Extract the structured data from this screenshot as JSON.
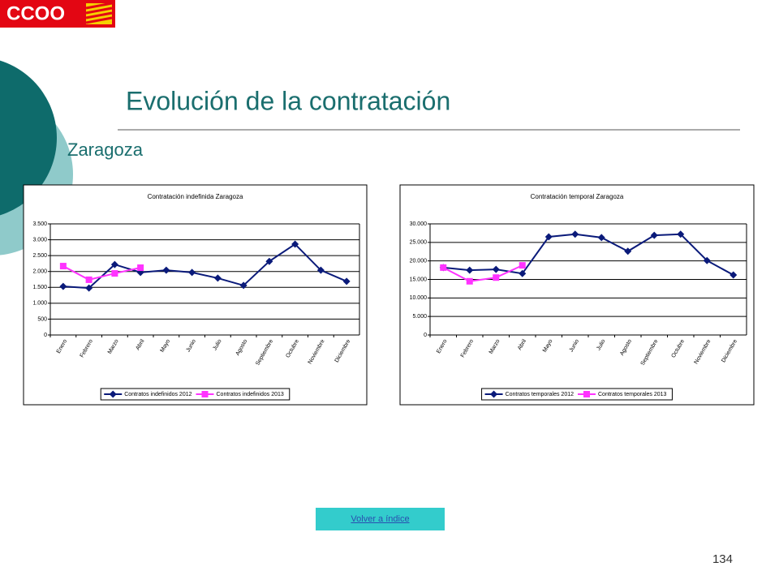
{
  "slide": {
    "logo": "CCOO",
    "title": "Evolución de la contratación",
    "subtitle": "Zaragoza",
    "button": "Volver a índice",
    "page_number": "134"
  },
  "chart_data": [
    {
      "type": "line",
      "title": "Contratación indefinida Zaragoza",
      "categories": [
        "Enero",
        "Febrero",
        "Marzo",
        "Abril",
        "Mayo",
        "Junio",
        "Julio",
        "Agosto",
        "Septiembre",
        "Octubre",
        "Noviembre",
        "Diciembre"
      ],
      "series": [
        {
          "name": "Contratos indefinidos 2012",
          "color": "#0a1a7a",
          "marker": "diamond",
          "values": [
            1530,
            1480,
            2220,
            1970,
            2040,
            1970,
            1790,
            1560,
            2320,
            2860,
            2040,
            1690
          ]
        },
        {
          "name": "Contratos indefinidos 2013",
          "color": "#ff33ff",
          "marker": "square",
          "values": [
            2170,
            1740,
            1940,
            2120,
            null,
            null,
            null,
            null,
            null,
            null,
            null,
            null
          ]
        }
      ],
      "ylim": [
        0,
        3500
      ],
      "yticks": [
        0,
        500,
        {
          "value": 1000,
          "label": "1.000"
        },
        {
          "value": 1500,
          "label": "1.500"
        },
        {
          "value": 2000,
          "label": "2.000"
        },
        {
          "value": 2500,
          "label": "2.500"
        },
        {
          "value": 3000,
          "label": "3.000"
        },
        {
          "value": 3500,
          "label": "3.500"
        }
      ],
      "grid": true,
      "legend": "bottom"
    },
    {
      "type": "line",
      "title": "Contratación temporal Zaragoza",
      "categories": [
        "Enero",
        "Febrero",
        "Marzo",
        "Abril",
        "Mayo",
        "Junio",
        "Julio",
        "Agosto",
        "Septiembre",
        "Octubre",
        "Noviembre",
        "Diciembre"
      ],
      "series": [
        {
          "name": "Contratos temporales 2012",
          "color": "#0a1a7a",
          "marker": "diamond",
          "values": [
            18200,
            17500,
            17700,
            16600,
            26500,
            27200,
            26300,
            22600,
            26900,
            27200,
            20100,
            16200
          ]
        },
        {
          "name": "Contratos temporales 2013",
          "color": "#ff33ff",
          "marker": "square",
          "values": [
            18200,
            14500,
            15500,
            18800,
            null,
            null,
            null,
            null,
            null,
            null,
            null,
            null
          ]
        }
      ],
      "ylim": [
        0,
        30000
      ],
      "yticks": [
        0,
        {
          "value": 5000,
          "label": "5.000"
        },
        {
          "value": 10000,
          "label": "10.000"
        },
        {
          "value": 15000,
          "label": "15.000"
        },
        {
          "value": 20000,
          "label": "20.000"
        },
        {
          "value": 25000,
          "label": "25.000"
        },
        {
          "value": 30000,
          "label": "30.000"
        }
      ],
      "grid": true,
      "legend": "bottom"
    }
  ]
}
